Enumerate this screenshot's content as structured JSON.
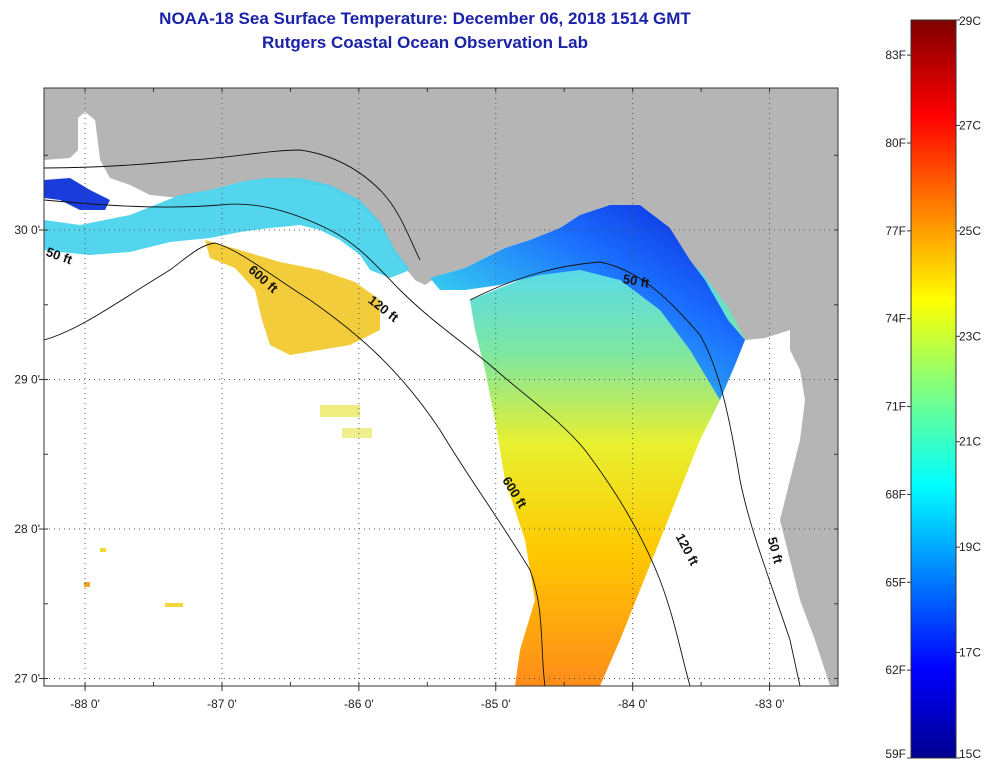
{
  "header": {
    "title": "NOAA-18 Sea Surface Temperature:  December 06, 2018 1514 GMT",
    "subtitle": "Rutgers Coastal Ocean Observation Lab"
  },
  "map": {
    "region": "Eastern Gulf of Mexico / Florida Big Bend",
    "lat_ticks": [
      "30 0'",
      "29 0'",
      "28 0'",
      "27 0'"
    ],
    "lon_ticks": [
      "-88 0'",
      "-87 0'",
      "-86 0'",
      "-85 0'",
      "-84 0'",
      "-83 0'"
    ],
    "lon_range": [
      -88.3,
      -82.5
    ],
    "lat_range": [
      26.95,
      30.95
    ],
    "land_color": "#b5b5b5",
    "no_data_color": "#ffffff",
    "contour_labels": [
      {
        "text": "50 ft",
        "lon": -88.2,
        "lat": 29.8,
        "rot": 20
      },
      {
        "text": "600 ft",
        "lon": -86.72,
        "lat": 29.65,
        "rot": 42
      },
      {
        "text": "120 ft",
        "lon": -85.84,
        "lat": 29.45,
        "rot": 38
      },
      {
        "text": "50 ft",
        "lon": -83.98,
        "lat": 29.63,
        "rot": 10
      },
      {
        "text": "600 ft",
        "lon": -84.89,
        "lat": 28.23,
        "rot": 58
      },
      {
        "text": "120 ft",
        "lon": -83.63,
        "lat": 27.85,
        "rot": 62
      },
      {
        "text": "50 ft",
        "lon": -82.99,
        "lat": 27.85,
        "rot": 75
      }
    ]
  },
  "colorbar": {
    "min_c": 15,
    "max_c": 29,
    "celsius_labels": [
      "29C",
      "27C",
      "25C",
      "23C",
      "21C",
      "19C",
      "17C",
      "15C"
    ],
    "fahrenheit_labels": [
      "83F",
      "80F",
      "77F",
      "74F",
      "71F",
      "68F",
      "65F",
      "62F",
      "59F"
    ],
    "fahrenheit_values": [
      83,
      80,
      77,
      74,
      71,
      68,
      65,
      62,
      59
    ]
  }
}
